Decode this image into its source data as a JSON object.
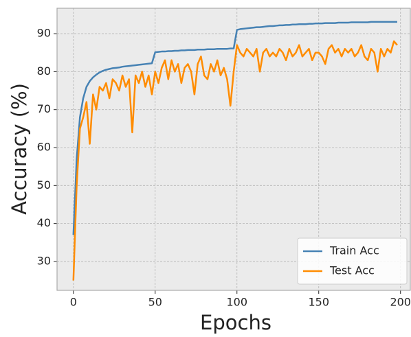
{
  "chart_data": {
    "type": "line",
    "xlabel": "Epochs",
    "ylabel": "Accuracy (%)",
    "x": [
      0,
      2,
      4,
      6,
      8,
      10,
      12,
      14,
      16,
      18,
      20,
      22,
      24,
      26,
      28,
      30,
      32,
      34,
      36,
      38,
      40,
      42,
      44,
      46,
      48,
      50,
      52,
      54,
      56,
      58,
      60,
      62,
      64,
      66,
      68,
      70,
      72,
      74,
      76,
      78,
      80,
      82,
      84,
      86,
      88,
      90,
      92,
      94,
      96,
      98,
      100,
      102,
      104,
      106,
      108,
      110,
      112,
      114,
      116,
      118,
      120,
      122,
      124,
      126,
      128,
      130,
      132,
      134,
      136,
      138,
      140,
      142,
      144,
      146,
      148,
      150,
      152,
      154,
      156,
      158,
      160,
      162,
      164,
      166,
      168,
      170,
      172,
      174,
      176,
      178,
      180,
      182,
      184,
      186,
      188,
      190,
      192,
      194,
      196,
      198
    ],
    "series": [
      {
        "name": "Train Acc",
        "color": "#4682b4",
        "values": [
          37,
          57,
          68,
          73,
          76,
          77.5,
          78.5,
          79.2,
          79.8,
          80.2,
          80.5,
          80.7,
          80.9,
          81,
          81.1,
          81.3,
          81.4,
          81.5,
          81.6,
          81.7,
          81.8,
          81.9,
          82,
          82.1,
          82.2,
          85.1,
          85.2,
          85.3,
          85.3,
          85.4,
          85.4,
          85.5,
          85.5,
          85.6,
          85.6,
          85.7,
          85.7,
          85.7,
          85.8,
          85.8,
          85.8,
          85.9,
          85.9,
          85.9,
          86,
          86,
          86,
          86,
          86.1,
          86.1,
          91,
          91.2,
          91.3,
          91.4,
          91.5,
          91.6,
          91.7,
          91.7,
          91.8,
          91.9,
          92,
          92,
          92.1,
          92.2,
          92.2,
          92.3,
          92.3,
          92.4,
          92.4,
          92.5,
          92.5,
          92.5,
          92.6,
          92.6,
          92.7,
          92.7,
          92.7,
          92.8,
          92.8,
          92.8,
          92.8,
          92.9,
          92.9,
          92.9,
          92.9,
          93,
          93,
          93,
          93,
          93,
          93,
          93.1,
          93.1,
          93.1,
          93.1,
          93.1,
          93.1,
          93.1,
          93.1,
          93.1
        ]
      },
      {
        "name": "Test Acc",
        "color": "#ff8c00",
        "values": [
          25,
          50,
          65,
          68,
          72,
          61,
          74,
          70,
          76,
          75,
          77,
          73,
          78,
          77,
          75,
          79,
          76,
          78,
          64,
          79,
          77,
          80,
          76,
          79,
          74,
          80,
          77,
          81,
          83,
          78,
          83,
          80,
          82,
          77,
          81,
          82,
          80,
          74,
          82,
          84,
          79,
          78,
          82,
          80,
          83,
          79,
          81,
          78,
          71,
          80,
          87,
          85,
          84,
          86,
          85,
          84,
          86,
          80,
          85,
          86,
          84,
          85,
          84,
          86,
          85,
          83,
          86,
          84,
          85,
          87,
          84,
          85,
          86,
          83,
          85,
          85,
          84,
          82,
          86,
          87,
          85,
          86,
          84,
          86,
          85,
          86,
          84,
          85,
          87,
          84,
          83,
          86,
          85,
          80,
          86,
          84,
          86,
          85,
          88,
          87
        ]
      }
    ],
    "xlim": [
      -10,
      206
    ],
    "ylim": [
      22.4,
      96.7
    ],
    "xticks": [
      0,
      50,
      100,
      150,
      200
    ],
    "yticks": [
      30,
      40,
      50,
      60,
      70,
      80,
      90
    ],
    "grid": true,
    "legend": "lower right"
  }
}
